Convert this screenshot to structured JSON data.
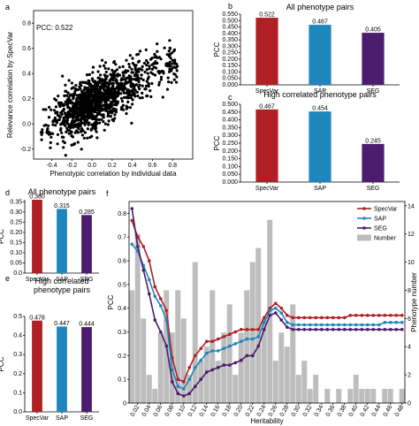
{
  "colors": {
    "specvar": "#b01f24",
    "sap": "#1f86bd",
    "seg": "#4c1c6f",
    "number": "#bdbdbd"
  },
  "chart_data": [
    {
      "id": "a",
      "panel_label": "a",
      "type": "scatter",
      "annotation": "PCC: 0.522",
      "xlabel": "Phenotypic correlation by individual data",
      "ylabel": "Relevance correlation by SpecVar",
      "x_ticks": [
        "-0.4",
        "-0.2",
        "0.0",
        "0.2",
        "0.4",
        "0.6",
        "0.8"
      ],
      "y_ticks": [
        "-0.2",
        "0.0",
        "0.2",
        "0.4",
        "0.6",
        "0.8"
      ],
      "xlim": [
        -0.58,
        1.0
      ],
      "ylim": [
        -0.28,
        0.9
      ]
    },
    {
      "id": "b",
      "panel_label": "b",
      "type": "bar",
      "title": "All phenotype pairs",
      "ylabel": "PCC",
      "categories": [
        "SpecVar",
        "SAP",
        "SEG"
      ],
      "values": [
        0.522,
        0.467,
        0.405
      ],
      "value_labels": [
        "0.522",
        "0.467",
        "0.405"
      ],
      "y_ticks": [
        "0.000",
        "0.050",
        "0.100",
        "0.150",
        "0.200",
        "0.250",
        "0.300",
        "0.350",
        "0.400",
        "0.450",
        "0.500",
        "0.550"
      ],
      "ylim": [
        0,
        0.55
      ]
    },
    {
      "id": "c",
      "panel_label": "c",
      "type": "bar",
      "title": "High correlated phenotype pairs",
      "ylabel": "PCC",
      "categories": [
        "SpecVar",
        "SAP",
        "SEG"
      ],
      "values": [
        0.467,
        0.454,
        0.245
      ],
      "value_labels": [
        "0.467",
        "0.454",
        "0.245"
      ],
      "y_ticks": [
        "0.000",
        "0.050",
        "0.100",
        "0.150",
        "0.200",
        "0.250",
        "0.300",
        "0.350",
        "0.400",
        "0.450",
        "0.500"
      ],
      "ylim": [
        0,
        0.5
      ]
    },
    {
      "id": "d",
      "panel_label": "d",
      "type": "bar",
      "title": "All phenotype pairs",
      "ylabel": "PCC",
      "categories": [
        "SpecVar",
        "SAP",
        "SEG"
      ],
      "values": [
        0.36,
        0.315,
        0.285
      ],
      "value_labels": [
        "0.360",
        "0.315",
        "0.285"
      ],
      "y_ticks": [
        "0.0",
        "0.05",
        "0.10",
        "0.15",
        "0.20",
        "0.25",
        "0.30",
        "0.35"
      ],
      "ylim": [
        0,
        0.36
      ]
    },
    {
      "id": "e",
      "panel_label": "e",
      "type": "bar",
      "title": "High correlated phenotype pairs",
      "ylabel": "PCC",
      "categories": [
        "SpecVar",
        "SAP",
        "SEG"
      ],
      "values": [
        0.478,
        0.447,
        0.444
      ],
      "value_labels": [
        "0.478",
        "0.447",
        "0.444"
      ],
      "y_ticks": [
        "0.0",
        "0.1",
        "0.2",
        "0.3",
        "0.4",
        "0.5"
      ],
      "ylim": [
        0,
        0.5
      ]
    },
    {
      "id": "f",
      "panel_label": "f",
      "type": "line",
      "xlabel": "Heritability",
      "ylabel": "PCC",
      "y2label": "Phenotype number",
      "x": [
        0.01,
        0.02,
        0.03,
        0.04,
        0.05,
        0.06,
        0.07,
        0.08,
        0.09,
        0.1,
        0.11,
        0.12,
        0.13,
        0.14,
        0.15,
        0.16,
        0.17,
        0.18,
        0.19,
        0.2,
        0.21,
        0.22,
        0.23,
        0.24,
        0.25,
        0.26,
        0.27,
        0.28,
        0.29,
        0.3,
        0.31,
        0.32,
        0.33,
        0.34,
        0.35,
        0.36,
        0.37,
        0.38,
        0.39,
        0.4,
        0.41,
        0.42,
        0.43,
        0.44,
        0.45,
        0.46,
        0.47,
        0.48
      ],
      "x_tick_labels": [
        "0.02",
        "0.04",
        "0.06",
        "0.08",
        "0.10",
        "0.12",
        "0.14",
        "0.16",
        "0.18",
        "0.20",
        "0.22",
        "0.24",
        "0.26",
        "0.28",
        "0.30",
        "0.32",
        "0.34",
        "0.36",
        "0.38",
        "0.40",
        "0.42",
        "0.44",
        "0.46",
        "0.48"
      ],
      "y_ticks": [
        "0",
        "0.1",
        "0.2",
        "0.3",
        "0.4",
        "0.5",
        "0.6",
        "0.7",
        "0.8"
      ],
      "y2_ticks": [
        "0",
        "2",
        "4",
        "6",
        "8",
        "10",
        "12",
        "14"
      ],
      "ylim": [
        0,
        0.85
      ],
      "y2lim": [
        0,
        14.3
      ],
      "series": [
        {
          "name": "SpecVar",
          "values": [
            0.77,
            0.7,
            0.66,
            0.6,
            0.49,
            0.44,
            0.39,
            0.19,
            0.1,
            0.09,
            0.15,
            0.2,
            0.23,
            0.26,
            0.26,
            0.27,
            0.28,
            0.29,
            0.3,
            0.31,
            0.31,
            0.31,
            0.31,
            0.36,
            0.4,
            0.42,
            0.4,
            0.37,
            0.36,
            0.36,
            0.36,
            0.36,
            0.36,
            0.36,
            0.36,
            0.36,
            0.36,
            0.36,
            0.37,
            0.37,
            0.37,
            0.37,
            0.37,
            0.37,
            0.37,
            0.37,
            0.37,
            0.37
          ]
        },
        {
          "name": "SAP",
          "values": [
            0.67,
            0.64,
            0.58,
            0.52,
            0.45,
            0.41,
            0.35,
            0.14,
            0.07,
            0.06,
            0.1,
            0.15,
            0.18,
            0.21,
            0.22,
            0.22,
            0.23,
            0.24,
            0.25,
            0.26,
            0.27,
            0.27,
            0.28,
            0.34,
            0.39,
            0.4,
            0.38,
            0.34,
            0.33,
            0.33,
            0.33,
            0.33,
            0.33,
            0.33,
            0.33,
            0.33,
            0.33,
            0.33,
            0.33,
            0.33,
            0.33,
            0.33,
            0.33,
            0.33,
            0.34,
            0.34,
            0.34,
            0.34
          ]
        },
        {
          "name": "SEG",
          "values": [
            0.82,
            0.66,
            0.56,
            0.46,
            0.35,
            0.3,
            0.24,
            0.09,
            0.04,
            0.03,
            0.04,
            0.07,
            0.1,
            0.13,
            0.14,
            0.15,
            0.16,
            0.16,
            0.17,
            0.18,
            0.2,
            0.2,
            0.24,
            0.31,
            0.37,
            0.38,
            0.35,
            0.32,
            0.31,
            0.31,
            0.31,
            0.31,
            0.31,
            0.31,
            0.31,
            0.31,
            0.31,
            0.31,
            0.31,
            0.31,
            0.31,
            0.31,
            0.31,
            0.31,
            0.31,
            0.31,
            0.31,
            0.31
          ]
        },
        {
          "name": "Number",
          "type": "bar",
          "axis": "y2",
          "values": [
            8,
            12,
            6,
            2,
            1,
            5,
            8,
            5,
            8,
            6,
            2,
            10,
            3,
            4,
            8,
            3,
            5,
            7,
            2,
            5,
            8,
            10,
            11,
            6,
            13,
            3,
            5,
            4,
            7,
            2,
            3,
            1,
            2,
            0,
            1,
            0,
            1,
            0,
            1,
            2,
            1,
            1,
            1,
            0,
            1,
            1,
            0,
            1
          ]
        }
      ]
    }
  ]
}
